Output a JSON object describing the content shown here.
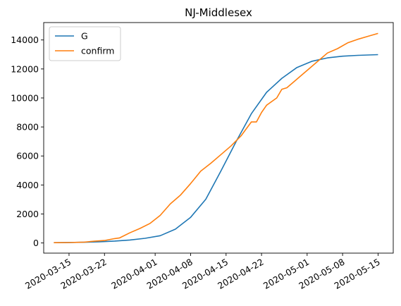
{
  "chart_data": {
    "type": "line",
    "title": "NJ-Middlesex",
    "xlabel": "",
    "ylabel": "",
    "x_axis": {
      "kind": "date",
      "range": [
        "2020-03-10",
        "2020-05-18"
      ],
      "ticks": [
        "2020-03-15",
        "2020-03-22",
        "2020-04-01",
        "2020-04-08",
        "2020-04-15",
        "2020-04-22",
        "2020-05-01",
        "2020-05-08",
        "2020-05-15"
      ]
    },
    "y_axis": {
      "range": [
        -700,
        15200
      ],
      "ticks": [
        0,
        2000,
        4000,
        6000,
        8000,
        10000,
        12000,
        14000
      ],
      "tick_labels": [
        "0",
        "2000",
        "4000",
        "6000",
        "8000",
        "10000",
        "12000",
        "14000"
      ]
    },
    "grid": false,
    "legend": {
      "placement": "top-left",
      "entries": [
        "G",
        "confirm"
      ]
    },
    "series": [
      {
        "name": "G",
        "color": "#1f77b4",
        "x": [
          "2020-03-12",
          "2020-03-15",
          "2020-03-18",
          "2020-03-21",
          "2020-03-24",
          "2020-03-27",
          "2020-03-30",
          "2020-04-02",
          "2020-04-05",
          "2020-04-08",
          "2020-04-11",
          "2020-04-14",
          "2020-04-17",
          "2020-04-20",
          "2020-04-23",
          "2020-04-26",
          "2020-04-29",
          "2020-05-02",
          "2020-05-05",
          "2020-05-08",
          "2020-05-11",
          "2020-05-15"
        ],
        "values": [
          20,
          32,
          51,
          82,
          130,
          205,
          323,
          502,
          955,
          1770,
          3013,
          4974,
          7008,
          8919,
          10389,
          11353,
          12104,
          12533,
          12763,
          12880,
          12940,
          12990
        ]
      },
      {
        "name": "confirm",
        "color": "#ff7f0e",
        "x": [
          "2020-03-12",
          "2020-03-15",
          "2020-03-18",
          "2020-03-20",
          "2020-03-22",
          "2020-03-24",
          "2020-03-25",
          "2020-03-27",
          "2020-03-29",
          "2020-03-31",
          "2020-04-02",
          "2020-04-04",
          "2020-04-06",
          "2020-04-08",
          "2020-04-10",
          "2020-04-12",
          "2020-04-14",
          "2020-04-16",
          "2020-04-18",
          "2020-04-20",
          "2020-04-21",
          "2020-04-22",
          "2020-04-23",
          "2020-04-25",
          "2020-04-26",
          "2020-04-27",
          "2020-04-28",
          "2020-04-30",
          "2020-05-01",
          "2020-05-03",
          "2020-05-05",
          "2020-05-07",
          "2020-05-09",
          "2020-05-11",
          "2020-05-13",
          "2020-05-15"
        ],
        "values": [
          20,
          30,
          60,
          120,
          170,
          300,
          350,
          700,
          1000,
          1350,
          1900,
          2700,
          3300,
          4100,
          4950,
          5500,
          6100,
          6700,
          7400,
          8350,
          8350,
          9000,
          9500,
          10000,
          10600,
          10700,
          11000,
          11600,
          11900,
          12500,
          13100,
          13400,
          13800,
          14050,
          14250,
          14450
        ]
      }
    ]
  }
}
